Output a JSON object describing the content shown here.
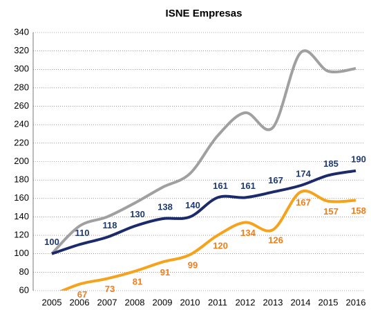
{
  "chart_data": {
    "type": "line",
    "title": "ISNE Empresas",
    "categories": [
      "2005",
      "2006",
      "2007",
      "2008",
      "2009",
      "2010",
      "2011",
      "2012",
      "2013",
      "2014",
      "2015",
      "2016"
    ],
    "series": [
      {
        "color": "#a0a0a0",
        "data_labels": false,
        "values": [
          100,
          130,
          140,
          155,
          172,
          187,
          228,
          253,
          237,
          318,
          298,
          301
        ]
      },
      {
        "color": "#1b2a6b",
        "label_color": "#1f3a6e",
        "data_labels": true,
        "label_side": "above",
        "values": [
          100,
          110,
          118,
          130,
          138,
          140,
          161,
          161,
          167,
          174,
          185,
          190
        ]
      },
      {
        "color": "#f7a21b",
        "label_color": "#f07d1a",
        "data_labels": true,
        "label_side": "below",
        "values": [
          55,
          67,
          73,
          81,
          91,
          99,
          120,
          134,
          126,
          167,
          157,
          158
        ]
      }
    ],
    "ylim": [
      60,
      340
    ],
    "yticks": [
      60,
      80,
      100,
      120,
      140,
      160,
      180,
      200,
      220,
      240,
      260,
      280,
      300,
      320,
      340
    ],
    "grid": true,
    "smooth": true
  }
}
